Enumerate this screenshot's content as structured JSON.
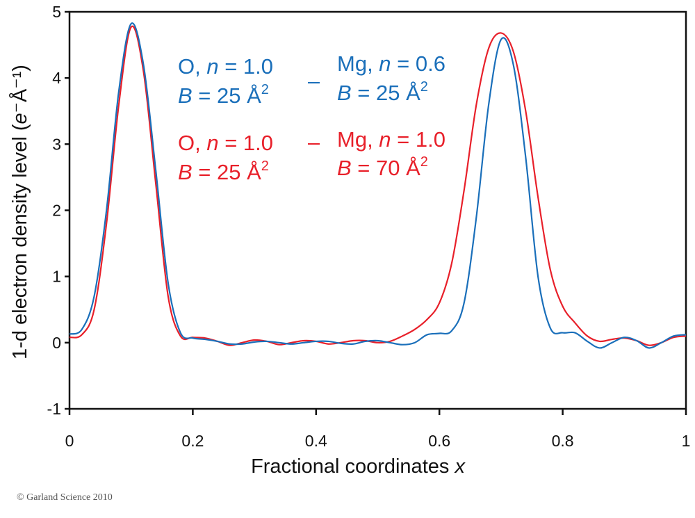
{
  "chart_data": {
    "type": "line",
    "xlabel": {
      "text": "Fractional coordinates ",
      "var": "x"
    },
    "ylabel": {
      "prefix": "1-d electron density level (",
      "var": "e",
      "unit": "⁻Å⁻¹)"
    },
    "xlim": [
      0,
      1
    ],
    "ylim": [
      -1,
      5
    ],
    "xticks": [
      "0",
      "0.2",
      "0.4",
      "0.6",
      "0.8",
      "1"
    ],
    "yticks": [
      "-1",
      "0",
      "1",
      "2",
      "3",
      "4",
      "5"
    ],
    "grid": false,
    "x": [
      0,
      0.02,
      0.04,
      0.06,
      0.08,
      0.1,
      0.12,
      0.14,
      0.16,
      0.18,
      0.2,
      0.22,
      0.24,
      0.26,
      0.28,
      0.3,
      0.32,
      0.34,
      0.36,
      0.38,
      0.4,
      0.42,
      0.44,
      0.46,
      0.48,
      0.5,
      0.52,
      0.54,
      0.56,
      0.58,
      0.6,
      0.62,
      0.64,
      0.66,
      0.68,
      0.7,
      0.72,
      0.74,
      0.76,
      0.78,
      0.8,
      0.82,
      0.84,
      0.86,
      0.88,
      0.9,
      0.92,
      0.94,
      0.96,
      0.98,
      1.0
    ],
    "series": [
      {
        "color": "#e8202a",
        "values": [
          0.08,
          0.12,
          0.5,
          1.8,
          3.6,
          4.77,
          4.1,
          2.4,
          0.7,
          0.1,
          0.08,
          0.07,
          0.02,
          -0.04,
          0.0,
          0.04,
          0.02,
          -0.03,
          0.0,
          0.03,
          0.02,
          -0.02,
          0.0,
          0.03,
          0.03,
          0.0,
          0.02,
          0.1,
          0.2,
          0.35,
          0.6,
          1.2,
          2.3,
          3.6,
          4.45,
          4.68,
          4.4,
          3.5,
          2.2,
          1.1,
          0.55,
          0.3,
          0.1,
          0.02,
          0.05,
          0.07,
          0.03,
          -0.04,
          0.0,
          0.08,
          0.1
        ]
      },
      {
        "color": "#1a6fba",
        "values": [
          0.13,
          0.2,
          0.7,
          2.0,
          3.8,
          4.82,
          4.2,
          2.6,
          0.9,
          0.15,
          0.07,
          0.05,
          0.02,
          -0.02,
          -0.02,
          0.01,
          0.02,
          0.0,
          -0.02,
          0.0,
          0.02,
          0.02,
          -0.01,
          -0.02,
          0.02,
          0.03,
          0.0,
          -0.03,
          0.0,
          0.12,
          0.14,
          0.18,
          0.6,
          1.9,
          3.6,
          4.58,
          4.2,
          2.8,
          1.0,
          0.22,
          0.15,
          0.15,
          0.02,
          -0.08,
          0.0,
          0.08,
          0.03,
          -0.08,
          0.0,
          0.1,
          0.12
        ]
      }
    ],
    "legend": [
      {
        "color": "#1a6fba",
        "l1a": "O, ",
        "l1v": "n",
        "l1b": " = 1.0",
        "l2v": "B",
        "l2b": " = 25 Å",
        "sup": "2"
      },
      {
        "color": "#e8202a",
        "l1a": "O, ",
        "l1v": "n",
        "l1b": " = 1.0",
        "l2v": "B",
        "l2b": " = 25 Å",
        "sup": "2"
      },
      {
        "color": "#1a6fba",
        "l1a": "Mg, ",
        "l1v": "n",
        "l1b": " = 0.6",
        "l2v": "B",
        "l2b": " = 25 Å",
        "sup": "2"
      },
      {
        "color": "#e8202a",
        "l1a": "Mg, ",
        "l1v": "n",
        "l1b": " = 1.0",
        "l2v": "B",
        "l2b": " = 70 Å",
        "sup": "2"
      }
    ]
  },
  "copyright": "© Garland Science 2010"
}
